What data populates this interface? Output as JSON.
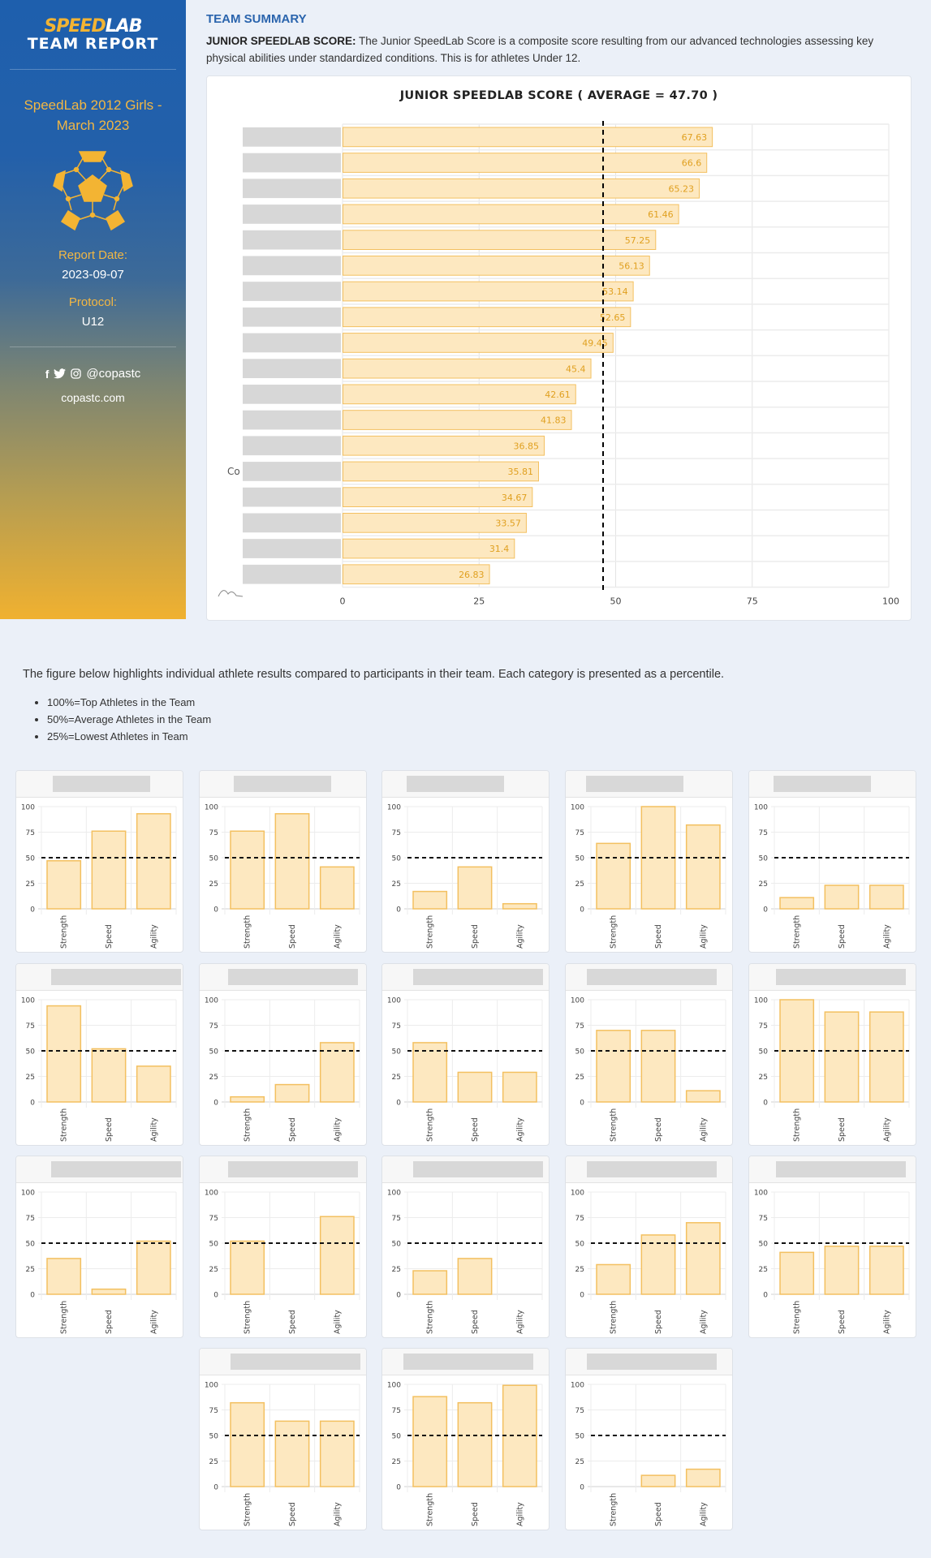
{
  "sidebar": {
    "logo_speed": "SPEED",
    "logo_lab": "LAB",
    "logo_subtitle": "TEAM REPORT",
    "team_name": "SpeedLab 2012 Girls - March 2023",
    "report_date_label": "Report Date:",
    "report_date": "2023-09-07",
    "protocol_label": "Protocol:",
    "protocol": "U12",
    "social_icons": [
      "facebook-icon",
      "twitter-icon",
      "instagram-icon"
    ],
    "social_handle": "@copastc",
    "website": "copastc.com"
  },
  "summary": {
    "heading": "TEAM SUMMARY",
    "score_label": "JUNIOR SPEEDLAB SCORE:",
    "score_description": "The Junior SpeedLab Score is a composite score resulting from our advanced technologies assessing key physical abilities under standardized conditions. This is for athletes Under 12."
  },
  "colors": {
    "accent_blue": "#2a64ad",
    "accent_gold": "#f3b433",
    "bar_fill": "#fde8c0",
    "bar_stroke": "#f3c060",
    "bar_label": "#e0a020"
  },
  "chart_data": [
    {
      "type": "bar",
      "orientation": "horizontal",
      "title": "JUNIOR SPEEDLAB SCORE ( AVERAGE = 47.70 )",
      "average": 47.7,
      "partial_label": "Co",
      "values": [
        67.63,
        66.6,
        65.23,
        61.46,
        57.25,
        56.13,
        53.14,
        52.65,
        49.45,
        45.4,
        42.61,
        41.83,
        36.85,
        35.81,
        34.67,
        33.57,
        31.4,
        26.83
      ],
      "value_labels": [
        "67.63",
        "66.6",
        "65.23",
        "61.46",
        "57.25",
        "56.13",
        "53.14",
        "52.65",
        "49.45",
        "45.4",
        "42.61",
        "41.83",
        "36.85",
        "35.81",
        "34.67",
        "33.57",
        "31.4",
        "26.83"
      ],
      "xlim": [
        0,
        100
      ],
      "xticks": [
        "0",
        "25",
        "50",
        "75",
        "100"
      ],
      "grid": true
    },
    {
      "type": "bar",
      "description": "individual athlete percentiles",
      "categories": [
        "Strength",
        "Speed",
        "Agility"
      ],
      "yticks": [
        "100",
        "75",
        "50",
        "25",
        "0"
      ],
      "ylim": [
        0,
        100
      ],
      "reference_line": 50,
      "athletes": [
        [
          47,
          76,
          93
        ],
        [
          76,
          93,
          41
        ],
        [
          17,
          41,
          5
        ],
        [
          64,
          100,
          82
        ],
        [
          11,
          23,
          23
        ],
        [
          94,
          52,
          35
        ],
        [
          5,
          17,
          58
        ],
        [
          58,
          29,
          29
        ],
        [
          70,
          70,
          11
        ],
        [
          100,
          88,
          88
        ],
        [
          35,
          5,
          52
        ],
        [
          52,
          0,
          76
        ],
        [
          23,
          35,
          0
        ],
        [
          29,
          58,
          70
        ],
        [
          41,
          47,
          47
        ],
        [
          82,
          64,
          64
        ],
        [
          88,
          82,
          99
        ],
        [
          0,
          11,
          17
        ]
      ]
    }
  ],
  "individual": {
    "intro": "The figure below highlights individual athlete results compared to participants in their team. Each category is presented as a percentile.",
    "legend": [
      "100%=Top Athletes in the Team",
      "50%=Average Athletes in the Team",
      "25%=Lowest Athletes in Team"
    ]
  }
}
